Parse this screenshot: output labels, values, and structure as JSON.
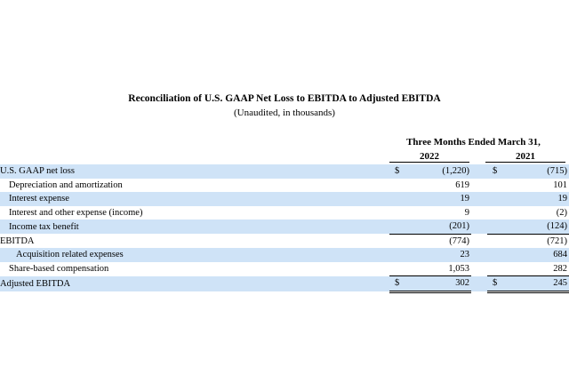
{
  "title": "Reconciliation of U.S. GAAP Net Loss to EBITDA to Adjusted EBITDA",
  "subtitle": "(Unaudited, in thousands)",
  "period_header": "Three Months Ended March 31,",
  "years": [
    "2022",
    "2021"
  ],
  "rows": [
    {
      "label": "U.S. GAAP net loss",
      "cur": "$",
      "v2022": "(1,220)",
      "v2021": "(715)"
    },
    {
      "label": "Depreciation and amortization",
      "cur": "",
      "v2022": "619",
      "v2021": "101"
    },
    {
      "label": "Interest expense",
      "cur": "",
      "v2022": "19",
      "v2021": "19"
    },
    {
      "label": "Interest and other expense (income)",
      "cur": "",
      "v2022": "9",
      "v2021": "(2)"
    },
    {
      "label": "Income tax benefit",
      "cur": "",
      "v2022": "(201)",
      "v2021": "(124)"
    },
    {
      "label": "EBITDA",
      "cur": "",
      "v2022": "(774)",
      "v2021": "(721)"
    },
    {
      "label": "Acquisition related expenses",
      "cur": "",
      "v2022": "23",
      "v2021": "684"
    },
    {
      "label": "Share-based compensation",
      "cur": "",
      "v2022": "1,053",
      "v2021": "282"
    },
    {
      "label": "Adjusted EBITDA",
      "cur": "$",
      "v2022": "302",
      "v2021": "245"
    }
  ]
}
